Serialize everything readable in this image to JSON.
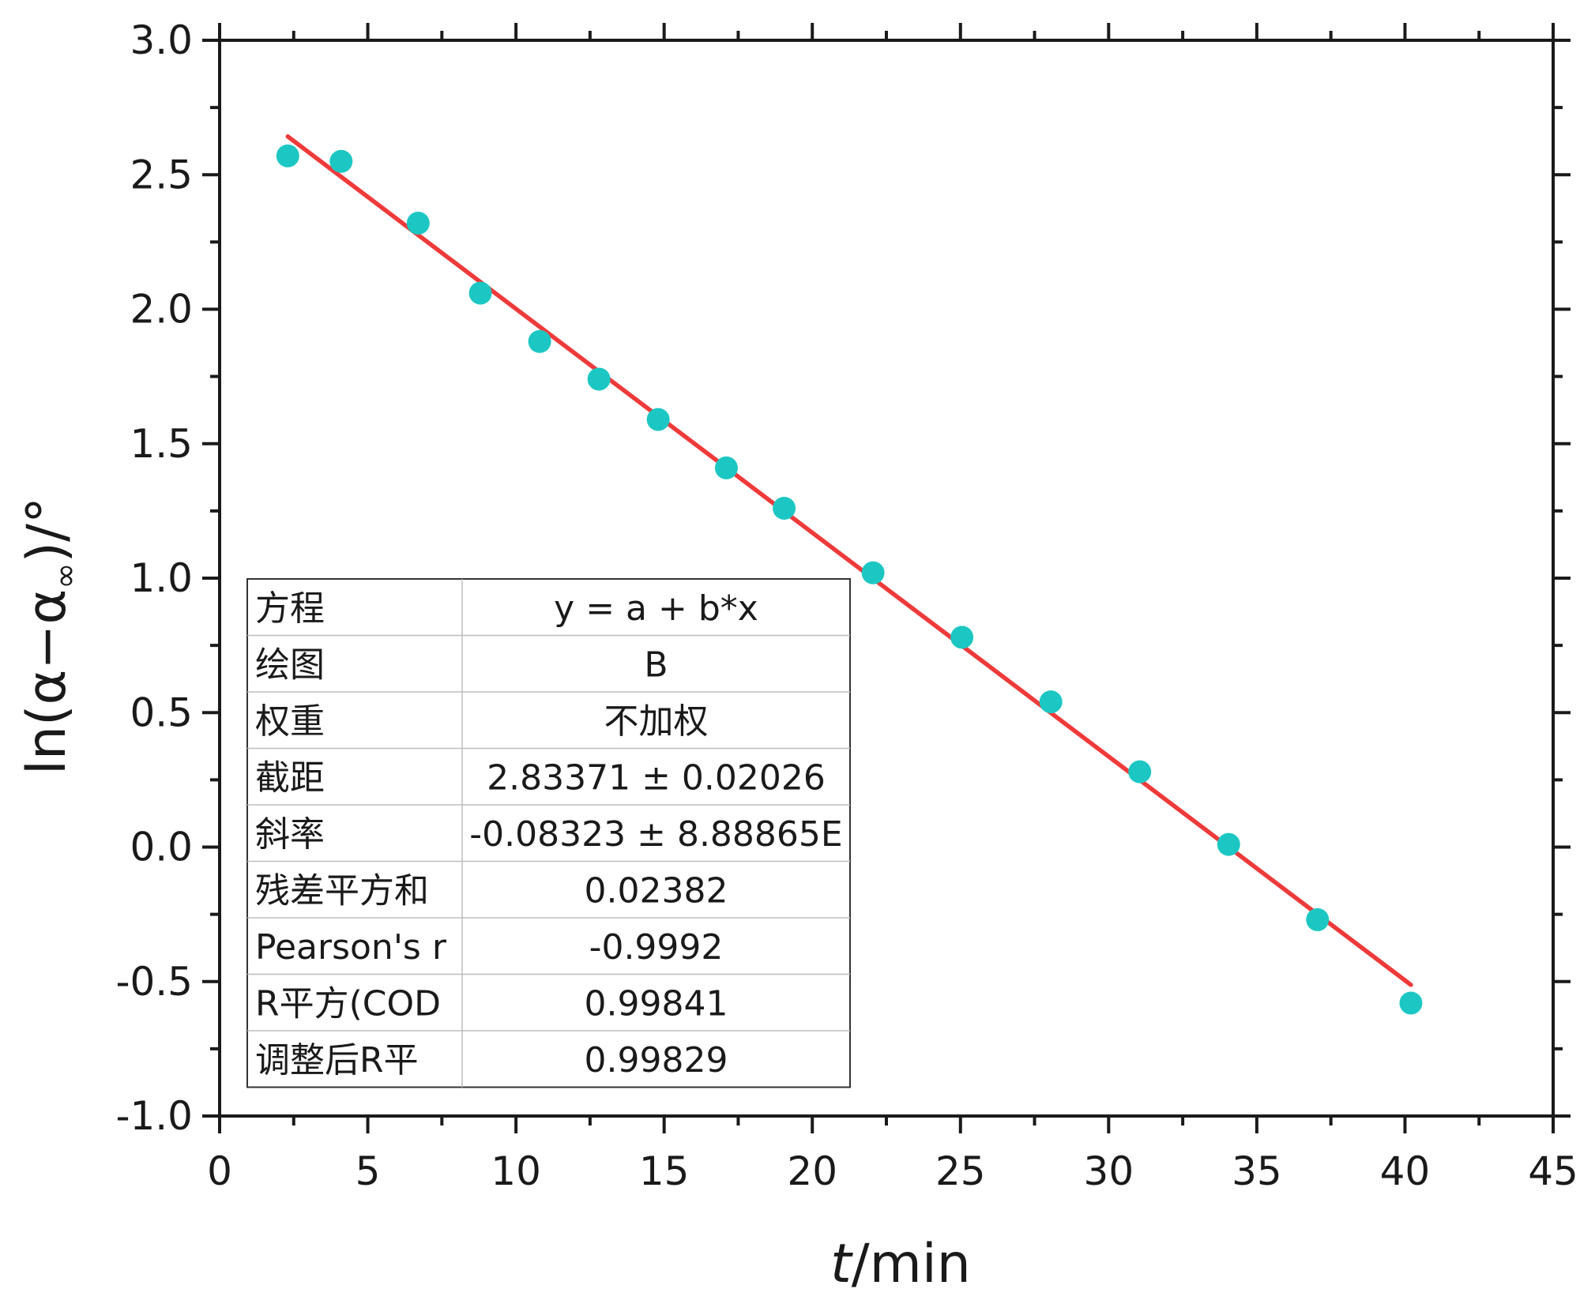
{
  "chart_data": {
    "type": "scatter",
    "xlabel_italic": "t",
    "xlabel_unit": "/min",
    "ylabel_main": "ln(α−α",
    "ylabel_sub": "∞",
    "ylabel_tail": ")/°",
    "xlim": [
      0,
      45
    ],
    "ylim": [
      -1.0,
      3.0
    ],
    "x_ticks": [
      0,
      5,
      10,
      15,
      20,
      25,
      30,
      35,
      40,
      45
    ],
    "y_ticks": [
      -1.0,
      -0.5,
      0.0,
      0.5,
      1.0,
      1.5,
      2.0,
      2.5,
      3.0
    ],
    "x_tick_labels": [
      "0",
      "5",
      "10",
      "15",
      "20",
      "25",
      "30",
      "35",
      "40",
      "45"
    ],
    "y_tick_labels": [
      "-1.0",
      "-0.5",
      "0.0",
      "0.5",
      "1.0",
      "1.5",
      "2.0",
      "2.5",
      "3.0"
    ],
    "grid": false,
    "series": [
      {
        "kind": "points",
        "color": "#1cc7c3",
        "x": [
          2.3,
          4.1,
          6.7,
          8.8,
          10.8,
          12.8,
          14.8,
          17.1,
          19.05,
          22.05,
          25.05,
          28.05,
          31.05,
          34.05,
          37.05,
          40.2
        ],
        "y": [
          2.57,
          2.55,
          2.32,
          2.06,
          1.88,
          1.74,
          1.59,
          1.41,
          1.26,
          1.02,
          0.78,
          0.54,
          0.28,
          0.01,
          -0.27,
          -0.58
        ]
      },
      {
        "kind": "fit",
        "color": "#ee3a3a",
        "intercept": 2.83371,
        "slope": -0.08323,
        "x_range": [
          2.3,
          40.2
        ]
      }
    ],
    "stats_table": [
      {
        "label": "方程",
        "value": "y = a + b*x"
      },
      {
        "label": "绘图",
        "value": "B"
      },
      {
        "label": "权重",
        "value": "不加权"
      },
      {
        "label": "截距",
        "value": "2.83371 ± 0.02026"
      },
      {
        "label": "斜率",
        "value": "-0.08323 ± 8.88865E"
      },
      {
        "label": "残差平方和",
        "value": "0.02382"
      },
      {
        "label": "Pearson's r",
        "value": "-0.9992"
      },
      {
        "label": "R平方(COD",
        "value": "0.99841"
      },
      {
        "label": "调整后R平",
        "value": "0.99829"
      }
    ]
  }
}
